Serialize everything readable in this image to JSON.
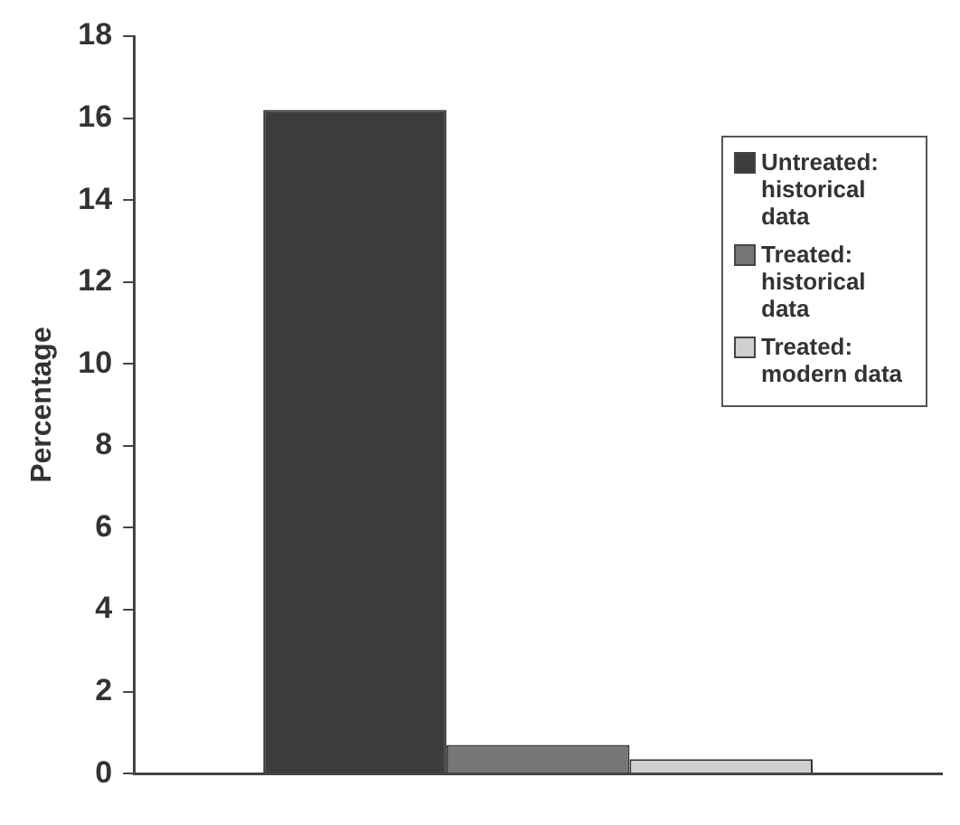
{
  "chart_data": {
    "type": "bar",
    "ylabel": "Percentage",
    "categories": [
      null
    ],
    "ylim": [
      0,
      18
    ],
    "yticks": [
      0,
      2,
      4,
      6,
      8,
      10,
      12,
      14,
      16,
      18
    ],
    "grid": false,
    "legend": "top right",
    "series": [
      {
        "name": "Untreated: historical data",
        "color": "#3c3c3c",
        "values": [
          16.2
        ]
      },
      {
        "name": "Treated: historical data",
        "color": "#767676",
        "values": [
          0.7
        ]
      },
      {
        "name": "Treated: modern data",
        "color": "#cfcfcf",
        "values": [
          0.35
        ]
      }
    ]
  }
}
